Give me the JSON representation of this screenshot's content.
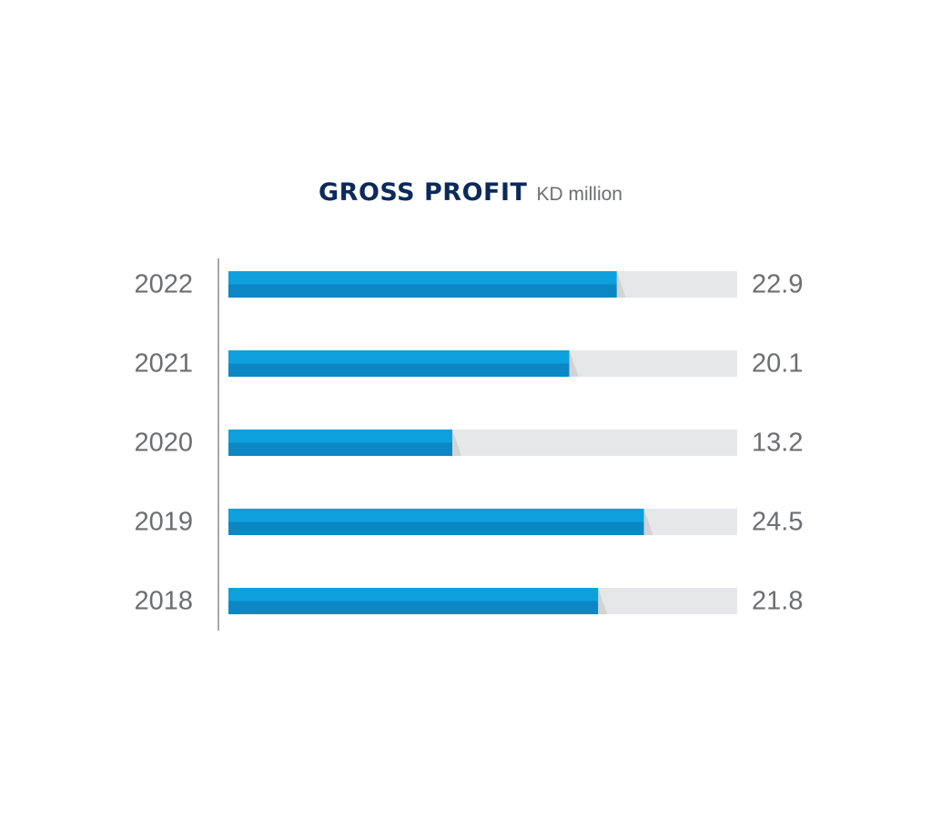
{
  "chart_data": {
    "type": "bar",
    "orientation": "horizontal",
    "title": "GROSS PROFIT",
    "subtitle": "KD million",
    "categories": [
      "2022",
      "2021",
      "2020",
      "2019",
      "2018"
    ],
    "values": [
      22.9,
      20.1,
      13.2,
      24.5,
      21.8
    ],
    "value_labels": [
      "22.9",
      "20.1",
      "13.2",
      "24.5",
      "21.8"
    ],
    "xlim": [
      0,
      30
    ],
    "grid": false,
    "legend": "none",
    "colors": {
      "bar_top": "#0ea0dd",
      "bar_bottom": "#0a87c4",
      "track": "#e6e7e8",
      "track_shade": "#d2d3d5",
      "labels": "#6d6e71",
      "axis": "#8a8c8e"
    }
  }
}
